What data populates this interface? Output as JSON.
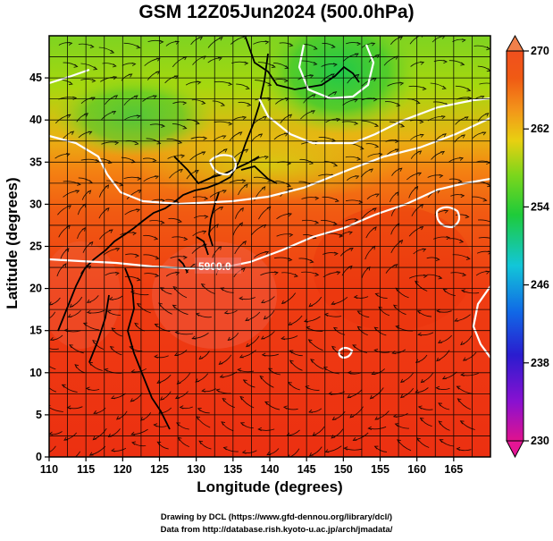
{
  "title": "GSM 12Z05Jun2024 (500.0hPa)",
  "xlabel": "Longitude (degrees)",
  "ylabel": "Latitude (degrees)",
  "credits": [
    "Drawing by DCL (https://www.gfd-dennou.org/library/dcl/)",
    "Data from http://database.rish.kyoto-u.ac.jp/arch/jmadata/"
  ],
  "contour_label": "5900.0",
  "chart_data": {
    "type": "heatmap",
    "variable": "temperature field with geopotential height contours and wind streamlines",
    "level": "500.0hPa",
    "xlim": [
      110,
      170
    ],
    "ylim": [
      0,
      50
    ],
    "x_ticks": [
      "110",
      "115",
      "120",
      "125",
      "130",
      "135",
      "140",
      "145",
      "150",
      "155",
      "160",
      "165"
    ],
    "y_ticks": [
      "0",
      "5",
      "10",
      "15",
      "20",
      "25",
      "30",
      "35",
      "40",
      "45"
    ],
    "colorbar": {
      "ticks": [
        "230",
        "238",
        "246",
        "254",
        "262",
        "270"
      ],
      "range": [
        230,
        270
      ]
    },
    "height_contour": {
      "value": 5900.0,
      "label": "5900.0"
    }
  }
}
